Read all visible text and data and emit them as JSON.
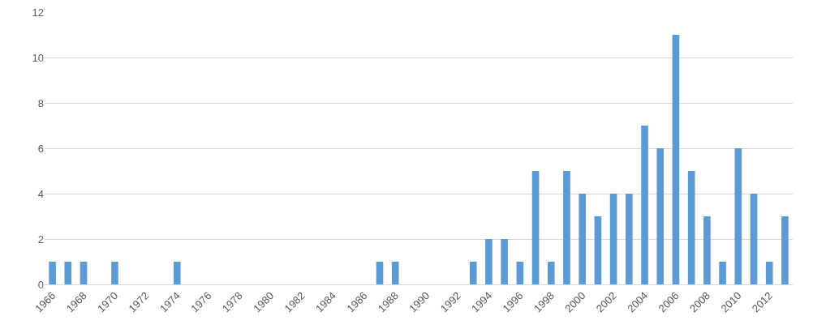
{
  "chart_data": {
    "type": "bar",
    "categories": [
      "1966",
      null,
      "1968",
      null,
      "1970",
      null,
      "1972",
      null,
      "1974",
      null,
      "1976",
      null,
      "1978",
      null,
      "1980",
      null,
      "1982",
      null,
      "1984",
      null,
      "1986",
      null,
      "1988",
      null,
      "1990",
      null,
      "1992",
      null,
      "1994",
      null,
      "1996",
      null,
      "1998",
      null,
      "2000",
      null,
      "2002",
      null,
      "2004",
      null,
      "2006",
      null,
      "2008",
      null,
      "2010",
      null,
      "2012",
      null
    ],
    "values": [
      1,
      1,
      1,
      0,
      1,
      0,
      0,
      0,
      1,
      0,
      0,
      0,
      0,
      0,
      0,
      0,
      0,
      0,
      0,
      0,
      0,
      1,
      1,
      0,
      0,
      0,
      0,
      1,
      2,
      2,
      1,
      5,
      1,
      5,
      4,
      3,
      4,
      4,
      7,
      6,
      11,
      5,
      3,
      1,
      6,
      4,
      1,
      3
    ],
    "color": "#5b9bd5",
    "ylim": [
      0,
      12
    ],
    "yticks": [
      0,
      2,
      4,
      6,
      8,
      10,
      12
    ],
    "grid": "y"
  }
}
